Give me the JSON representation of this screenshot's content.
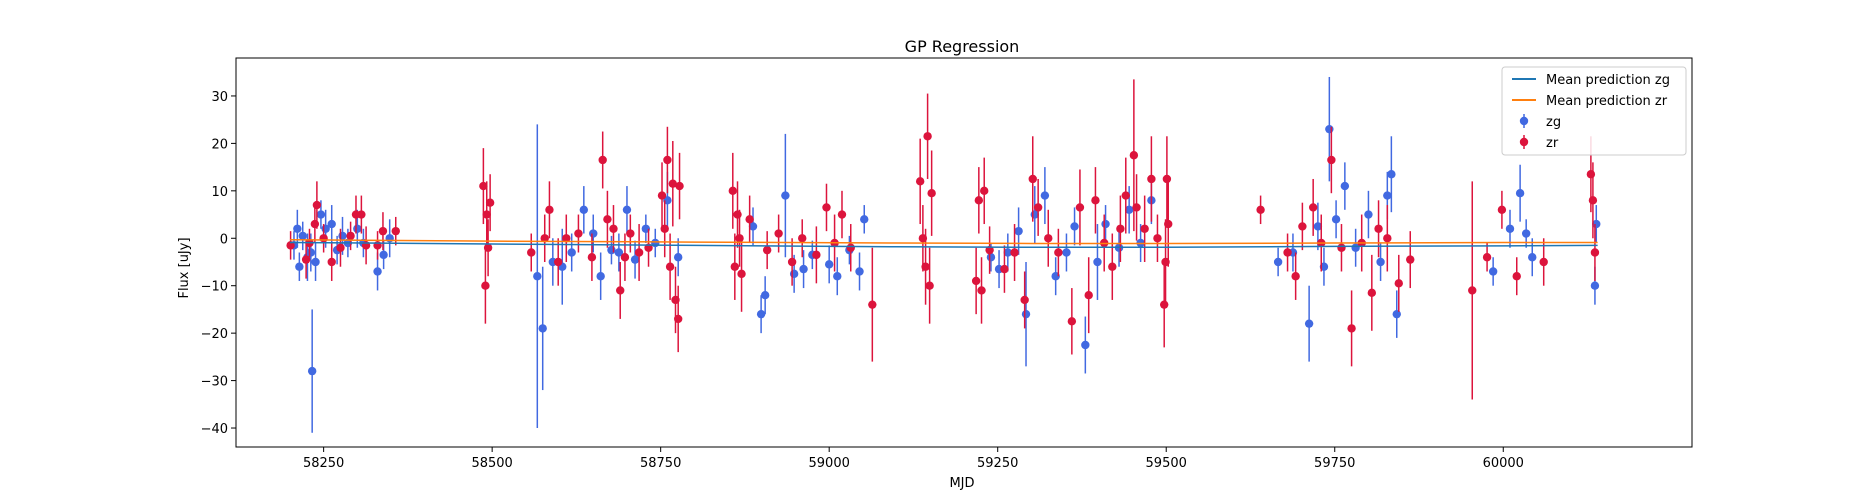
{
  "chart_data": {
    "type": "scatter",
    "title": "GP Regression",
    "xlabel": "MJD",
    "ylabel": "Flux [uJy]",
    "xlim": [
      58120,
      60280
    ],
    "ylim": [
      -44,
      38
    ],
    "xticks": [
      58250,
      58500,
      58750,
      59000,
      59250,
      59500,
      59750,
      60000
    ],
    "yticks": [
      -40,
      -30,
      -20,
      -10,
      0,
      10,
      20,
      30
    ],
    "grid": false,
    "legend_position": "top-right",
    "series": [
      {
        "name": "Mean prediction zg",
        "kind": "line",
        "color": "#1f77b4",
        "x": [
          58200,
          58500,
          58800,
          59100,
          59300,
          59500,
          59750,
          60000,
          60140
        ],
        "y": [
          -0.9,
          -1.2,
          -1.5,
          -1.8,
          -1.9,
          -1.9,
          -1.7,
          -1.6,
          -1.5
        ]
      },
      {
        "name": "Mean prediction zr",
        "kind": "line",
        "color": "#ff7f0e",
        "x": [
          58200,
          58500,
          58800,
          59100,
          59300,
          59500,
          59750,
          60000,
          60140
        ],
        "y": [
          -0.3,
          -0.6,
          -0.8,
          -1.0,
          -1.1,
          -1.1,
          -1.0,
          -0.9,
          -0.9
        ]
      },
      {
        "name": "zg",
        "kind": "errorbar",
        "color": "#4169e1",
        "x": [
          58206,
          58211,
          58214,
          58219,
          58226,
          58231,
          58233,
          58238,
          58246,
          58253,
          58262,
          58270,
          58278,
          58286,
          58300,
          58309,
          58330,
          58339,
          58348,
          58567,
          58575,
          58590,
          58604,
          58618,
          58636,
          58650,
          58661,
          58677,
          58688,
          58700,
          58712,
          58728,
          58742,
          58760,
          58776,
          58887,
          58899,
          58905,
          58935,
          58948,
          58962,
          58975,
          59000,
          59012,
          59030,
          59045,
          59052,
          59240,
          59252,
          59265,
          59281,
          59292,
          59305,
          59320,
          59336,
          59352,
          59364,
          59380,
          59398,
          59410,
          59430,
          59445,
          59462,
          59478,
          59666,
          59688,
          59712,
          59725,
          59734,
          59742,
          59752,
          59765,
          59781,
          59800,
          59818,
          59828,
          59834,
          59842,
          59985,
          60010,
          60025,
          60034,
          60043,
          60136,
          60138
        ],
        "y": [
          -1.5,
          2.0,
          -6.0,
          0.5,
          -4.0,
          -3.0,
          -28.0,
          -5.0,
          5.0,
          2.0,
          3.0,
          -2.5,
          0.5,
          -1.0,
          2.0,
          -1.0,
          -7.0,
          -3.5,
          0.0,
          -8.0,
          -19.0,
          -5.0,
          -6.0,
          -3.0,
          6.0,
          1.0,
          -8.0,
          -2.5,
          -3.0,
          6.0,
          -4.5,
          2.0,
          -1.0,
          8.0,
          -4.0,
          2.5,
          -16.0,
          -12.0,
          9.0,
          -7.5,
          -6.5,
          -3.5,
          -5.5,
          -8.0,
          -2.5,
          -7.0,
          4.0,
          -4.0,
          -6.5,
          -3.0,
          1.5,
          -16.0,
          5.0,
          9.0,
          -8.0,
          -3.0,
          2.5,
          -22.5,
          -5.0,
          3.0,
          -2.0,
          6.0,
          -1.0,
          8.0,
          -5.0,
          -3.0,
          -18.0,
          2.5,
          -6.0,
          23.0,
          4.0,
          11.0,
          -2.0,
          5.0,
          -5.0,
          9.0,
          13.5,
          -16.0,
          -7.0,
          2.0,
          9.5,
          1.0,
          -4.0,
          -10.0,
          3.0
        ],
        "err": [
          3,
          4,
          3,
          3,
          5,
          4,
          13,
          4,
          3,
          4,
          4,
          3,
          4,
          3,
          4,
          3,
          4,
          3,
          4,
          32,
          13,
          5,
          8,
          4,
          5,
          4,
          5,
          3,
          4,
          5,
          4,
          3,
          3,
          6,
          4,
          4,
          4,
          4,
          13,
          4,
          4,
          3,
          4,
          4,
          3,
          4,
          3,
          3,
          4,
          4,
          5,
          11,
          6,
          6,
          4,
          4,
          4,
          6,
          8,
          4,
          4,
          5,
          4,
          5,
          3,
          4,
          8,
          5,
          4,
          11,
          4,
          5,
          4,
          5,
          4,
          5,
          8,
          5,
          3,
          4,
          6,
          3,
          4,
          4,
          4
        ]
      },
      {
        "name": "zr",
        "kind": "errorbar",
        "color": "#dc143c",
        "x": [
          58201,
          58224,
          58229,
          58237,
          58240,
          58250,
          58262,
          58275,
          58290,
          58298,
          58306,
          58313,
          58330,
          58338,
          58357,
          58487,
          58490,
          58492,
          58494,
          58497,
          58558,
          58578,
          58585,
          58598,
          58610,
          58628,
          58648,
          58664,
          58671,
          58680,
          58690,
          58697,
          58705,
          58718,
          58732,
          58752,
          58756,
          58760,
          58764,
          58768,
          58772,
          58776,
          58778,
          58857,
          58860,
          58864,
          58867,
          58870,
          58882,
          58908,
          58925,
          58945,
          58960,
          58981,
          58996,
          59008,
          59019,
          59032,
          59064,
          59135,
          59139,
          59143,
          59146,
          59149,
          59152,
          59218,
          59222,
          59226,
          59230,
          59238,
          59260,
          59275,
          59290,
          59302,
          59310,
          59325,
          59340,
          59360,
          59372,
          59385,
          59395,
          59408,
          59420,
          59432,
          59440,
          59452,
          59456,
          59468,
          59478,
          59487,
          59497,
          59499,
          59501,
          59503,
          59640,
          59680,
          59692,
          59702,
          59718,
          59730,
          59745,
          59760,
          59775,
          59790,
          59805,
          59815,
          59828,
          59845,
          59862,
          59954,
          59976,
          59998,
          60020,
          60060,
          60130,
          60133,
          60136
        ],
        "y": [
          -1.5,
          -4.5,
          -1.0,
          3.0,
          7.0,
          0.0,
          -5.0,
          -2.0,
          0.5,
          5.0,
          5.0,
          -1.5,
          -1.5,
          1.5,
          1.5,
          11.0,
          -10.0,
          5.0,
          -2.0,
          7.5,
          -3.0,
          0.0,
          6.0,
          -5.0,
          0.0,
          1.0,
          -4.0,
          16.5,
          4.0,
          2.0,
          -11.0,
          -4.0,
          1.0,
          -3.0,
          -2.0,
          9.0,
          2.0,
          16.5,
          -6.0,
          11.5,
          -13.0,
          -17.0,
          11.0,
          10.0,
          -6.0,
          5.0,
          0.0,
          -7.5,
          4.0,
          -2.5,
          1.0,
          -5.0,
          0.0,
          -3.5,
          6.5,
          -1.0,
          5.0,
          -2.0,
          -14.0,
          12.0,
          0.0,
          -6.0,
          21.5,
          -10.0,
          9.5,
          -9.0,
          8.0,
          -11.0,
          10.0,
          -2.5,
          -6.5,
          -3.0,
          -13.0,
          12.5,
          6.5,
          0.0,
          -3.0,
          -17.5,
          6.5,
          -12.0,
          8.0,
          -1.0,
          -6.0,
          2.0,
          9.0,
          17.5,
          6.5,
          2.0,
          12.5,
          0.0,
          -14.0,
          -5.0,
          12.5,
          3.0,
          6.0,
          -3.0,
          -8.0,
          2.5,
          6.5,
          -1.0,
          16.5,
          -2.0,
          -19.0,
          -1.0,
          -11.5,
          2.0,
          0.0,
          -9.5,
          -4.5,
          -11.0,
          -4.0,
          6.0,
          -8.0,
          -5.0,
          13.5,
          8.0,
          -3.0
        ],
        "err": [
          3,
          4,
          3,
          4,
          5,
          3,
          4,
          4,
          3,
          4,
          4,
          4,
          3,
          4,
          3,
          8,
          8,
          7,
          6,
          6,
          4,
          5,
          6,
          5,
          5,
          4,
          5,
          6,
          6,
          5,
          6,
          5,
          4,
          6,
          4,
          7,
          6,
          7,
          7,
          9,
          7,
          7,
          7,
          8,
          7,
          7,
          6,
          8,
          5,
          4,
          4,
          5,
          4,
          6,
          5,
          6,
          5,
          5,
          12,
          9,
          7,
          8,
          9,
          8,
          9,
          7,
          7,
          7,
          7,
          5,
          5,
          6,
          6,
          9,
          6,
          6,
          5,
          7,
          8,
          8,
          7,
          6,
          7,
          7,
          8,
          16,
          7,
          7,
          9,
          5,
          9,
          9,
          9,
          9,
          3,
          4,
          5,
          5,
          6,
          6,
          7,
          5,
          8,
          6,
          8,
          6,
          7,
          6,
          6,
          23,
          3,
          4,
          4,
          5,
          8,
          8,
          6
        ]
      }
    ]
  }
}
